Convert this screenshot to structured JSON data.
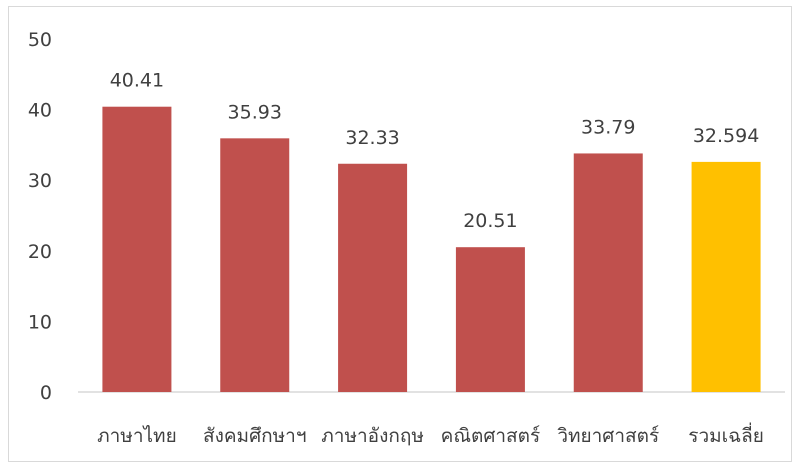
{
  "chart_data": {
    "type": "bar",
    "categories": [
      "ภาษาไทย",
      "สังคมศึกษาฯ",
      "ภาษาอังกฤษ",
      "คณิตศาสตร์",
      "วิทยาศาสตร์",
      "รวมเฉลี่ย"
    ],
    "values": [
      40.41,
      35.93,
      32.33,
      20.51,
      33.79,
      32.594
    ],
    "data_labels": [
      "40.41",
      "35.93",
      "32.33",
      "20.51",
      "33.79",
      "32.594"
    ],
    "ylim": [
      0,
      50
    ],
    "yticks": [
      0,
      10,
      20,
      30,
      40,
      50
    ],
    "grid": false,
    "legend": "none",
    "colors": [
      "#c0504d",
      "#c0504d",
      "#c0504d",
      "#c0504d",
      "#c0504d",
      "#ffc000"
    ]
  }
}
